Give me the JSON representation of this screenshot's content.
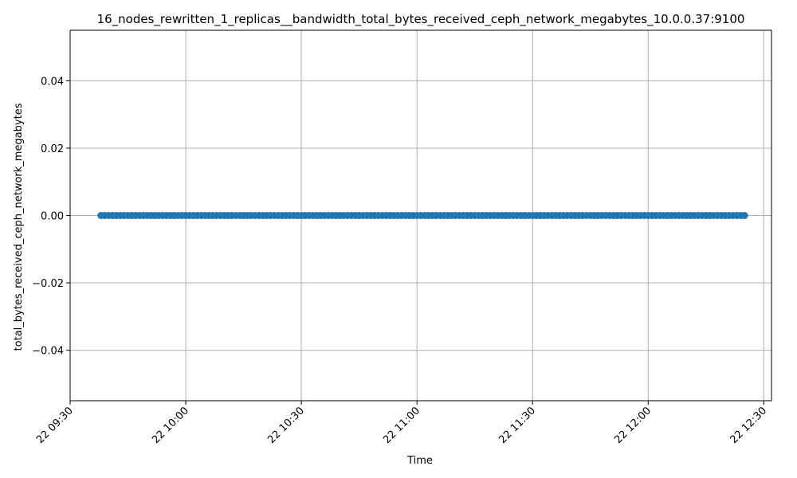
{
  "chart_data": {
    "type": "line",
    "title": "16_nodes_rewritten_1_replicas__bandwidth_total_bytes_received_ceph_network_megabytes_10.0.0.37:9100",
    "xlabel": "Time",
    "ylabel": "total_bytes_received_ceph_network_megabytes",
    "x_start": "22 09:38",
    "x_end": "22 12:25",
    "x_range": [
      "22 09:30",
      "22 12:32"
    ],
    "x_ticks": [
      "22 09:30",
      "22 10:00",
      "22 10:30",
      "22 11:00",
      "22 11:30",
      "22 12:00",
      "22 12:30"
    ],
    "y_ticks": [
      "0.04",
      "0.02",
      "0.00",
      "−0.02",
      "−0.04"
    ],
    "y_tick_values": [
      0.04,
      0.02,
      0.0,
      -0.02,
      -0.04
    ],
    "ylim": [
      -0.055,
      0.055
    ],
    "grid": true,
    "series": [
      {
        "constant_value": 0.0,
        "point_count": 168,
        "color": "#1f77b4",
        "marker": "circle"
      }
    ]
  }
}
